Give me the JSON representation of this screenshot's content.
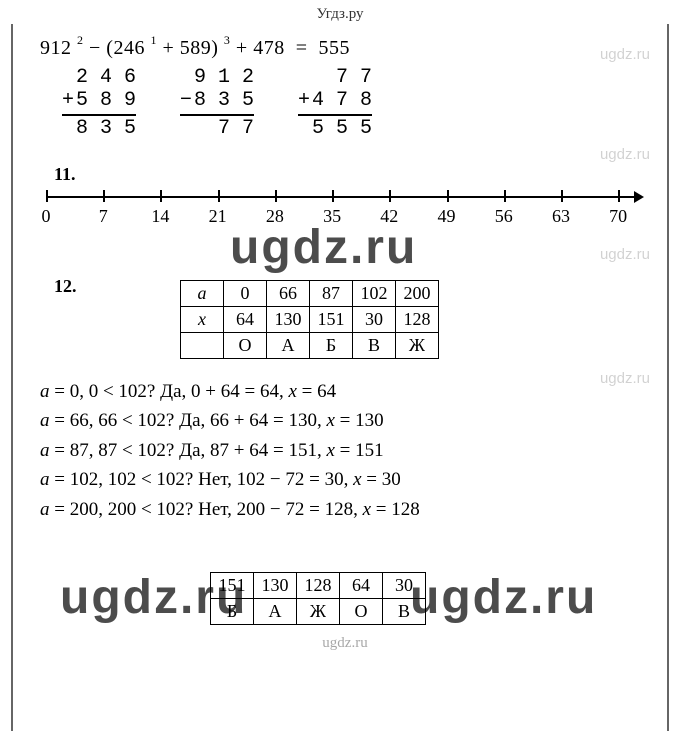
{
  "header": "Угдз.ру",
  "watermarks": {
    "small": "ugdz.ru",
    "big": "ugdz.ru"
  },
  "equation": {
    "a": "912",
    "sup1": "2",
    "op1": "−",
    "lp": "(",
    "b": "246",
    "sup2": "1",
    "op2": "+",
    "c": "589",
    "rp": ")",
    "sup3": "3",
    "op3": "+",
    "d": "478",
    "eq": "=",
    "result": "555"
  },
  "columns": [
    {
      "sign": "+",
      "r1": "2 4 6",
      "r2": "5 8 9",
      "res": "8 3 5"
    },
    {
      "sign": "−",
      "r1": "9 1 2",
      "r2": "8 3 5",
      "res": "  7 7"
    },
    {
      "sign": "+",
      "r1": "  7 7",
      "r2": "4 7 8",
      "res": "5 5 5"
    }
  ],
  "problem11": {
    "label": "11."
  },
  "numberline": {
    "ticks": [
      0,
      7,
      14,
      21,
      28,
      35,
      42,
      49,
      56,
      63,
      70
    ]
  },
  "problem12": {
    "label": "12."
  },
  "table1": {
    "rows": [
      [
        "a",
        "0",
        "66",
        "87",
        "102",
        "200"
      ],
      [
        "x",
        "64",
        "130",
        "151",
        "30",
        "128"
      ],
      [
        "",
        "О",
        "А",
        "Б",
        "В",
        "Ж"
      ]
    ]
  },
  "work": [
    "a = 0, 0 < 102? Да, 0 + 64 = 64, x = 64",
    "a = 66, 66 < 102? Да, 66 + 64 = 130, x = 130",
    "a = 87, 87 < 102? Да, 87 + 64 = 151, x = 151",
    "a = 102, 102 < 102? Нет, 102 − 72 = 30, x = 30",
    "a = 200, 200 < 102? Нет, 200 − 72 = 128, x = 128"
  ],
  "table2": {
    "rows": [
      [
        "151",
        "130",
        "128",
        "64",
        "30"
      ],
      [
        "Б",
        "А",
        "Ж",
        "О",
        "В"
      ]
    ]
  },
  "colors": {
    "text": "#000000",
    "bg": "#ffffff",
    "rule": "#666666",
    "wm_light": "rgba(0,0,0,0.18)"
  }
}
